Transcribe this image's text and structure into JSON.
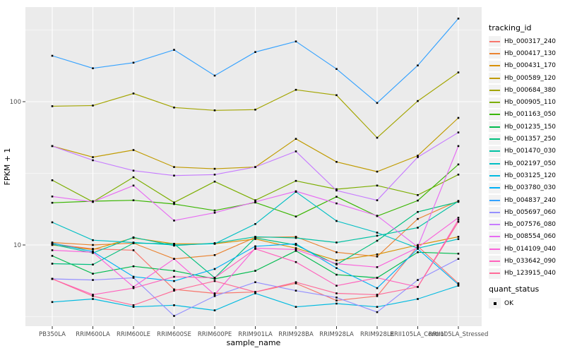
{
  "figure": {
    "y_tick_labels": [
      "100",
      "10"
    ]
  },
  "legend": {
    "tracking_title": "tracking_id",
    "quant_title": "quant_status",
    "quant_value": "OK"
  },
  "chart_data": {
    "type": "line",
    "title": "",
    "xlabel": "sample_name",
    "ylabel": "FPKM + 1",
    "y_scale": "log10",
    "ylim": [
      2.7,
      460
    ],
    "y_major_ticks": [
      10,
      100
    ],
    "y_minor_ticks": [
      3.1623,
      31.623,
      316.23
    ],
    "grid": true,
    "legend_position": "right",
    "point_shape": "black-square",
    "panel_background": "#EBEBEB",
    "grid_color": "#FFFFFF",
    "tick_label_color": "#4D4D4D",
    "categories": [
      "PB350LA",
      "RRIM600LA",
      "RRIM600LE",
      "RRIM600SE",
      "RRIM600PE",
      "RRIM901LA",
      "RRIM928BA",
      "RRIM928LA",
      "RRIM928LE",
      "RRII105LA_Control",
      "RRII105LA_Stressed"
    ],
    "series": [
      {
        "name": "Hb_000317_240",
        "color": "#F8766D",
        "values": [
          10.2,
          9.4,
          9.2,
          4.9,
          4.6,
          4.7,
          5.4,
          4.1,
          4.4,
          9.8,
          5.4
        ]
      },
      {
        "name": "Hb_000417_130",
        "color": "#EA8331",
        "values": [
          10.4,
          10.0,
          10.3,
          8.0,
          8.5,
          11.3,
          11.4,
          8.9,
          8.3,
          15.2,
          20.3
        ]
      },
      {
        "name": "Hb_000431_170",
        "color": "#D89000",
        "values": [
          10.0,
          9.3,
          11.2,
          10.2,
          10.2,
          11.0,
          9.5,
          7.8,
          8.6,
          10.0,
          11.4
        ]
      },
      {
        "name": "Hb_000589_120",
        "color": "#C09B00",
        "values": [
          49,
          41,
          46,
          35,
          34,
          35,
          55,
          38,
          32.5,
          42,
          77
        ]
      },
      {
        "name": "Hb_000684_380",
        "color": "#A3A500",
        "values": [
          93,
          94,
          114,
          91,
          87,
          88,
          121,
          111,
          56,
          101,
          160
        ]
      },
      {
        "name": "Hb_000905_110",
        "color": "#7CAE00",
        "values": [
          28.3,
          20.0,
          29.7,
          19.8,
          27.7,
          20.5,
          28.0,
          24.5,
          26.0,
          22.3,
          31.0
        ]
      },
      {
        "name": "Hb_001163_050",
        "color": "#39B600",
        "values": [
          19.7,
          20.2,
          20.5,
          19.3,
          17.4,
          19.8,
          15.8,
          21.7,
          15.9,
          20.4,
          36.5
        ]
      },
      {
        "name": "Hb_001235_150",
        "color": "#00BB4E",
        "values": [
          8.4,
          6.3,
          7.1,
          6.6,
          5.8,
          6.6,
          9.1,
          6.2,
          5.9,
          8.9,
          8.7
        ]
      },
      {
        "name": "Hb_001357_250",
        "color": "#00BF7D",
        "values": [
          7.4,
          7.3,
          10.3,
          10.2,
          5.9,
          11.2,
          10.0,
          7.3,
          10.7,
          17.0,
          20.0
        ]
      },
      {
        "name": "Hb_001470_030",
        "color": "#00C1A3",
        "values": [
          10.1,
          8.8,
          11.3,
          9.9,
          10.3,
          11.4,
          11.2,
          10.4,
          11.6,
          13.2,
          20.2
        ]
      },
      {
        "name": "Hb_002197_050",
        "color": "#00BFC4",
        "values": [
          14.4,
          10.8,
          10.4,
          10.0,
          10.2,
          14.0,
          23.5,
          14.7,
          12.2,
          9.5,
          11.0
        ]
      },
      {
        "name": "Hb_003125_120",
        "color": "#00BAE0",
        "values": [
          4.0,
          4.2,
          3.7,
          3.8,
          3.5,
          4.6,
          3.7,
          3.9,
          3.7,
          4.2,
          5.2
        ]
      },
      {
        "name": "Hb_003780_030",
        "color": "#00B0F6",
        "values": [
          10.3,
          9.0,
          6.0,
          5.6,
          6.8,
          9.8,
          10.2,
          6.9,
          5.0,
          9.4,
          5.3
        ]
      },
      {
        "name": "Hb_004837_240",
        "color": "#35A2FF",
        "values": [
          209,
          171,
          187,
          230,
          152,
          222,
          263,
          169,
          98,
          179,
          380
        ]
      },
      {
        "name": "Hb_005697_060",
        "color": "#9590FF",
        "values": [
          5.8,
          5.7,
          5.9,
          3.2,
          4.4,
          5.5,
          4.8,
          4.3,
          3.4,
          5.7,
          8.0
        ]
      },
      {
        "name": "Hb_007576_080",
        "color": "#C77CFF",
        "values": [
          49,
          39,
          33,
          30.5,
          31,
          35,
          45,
          24,
          20.5,
          41,
          61
        ]
      },
      {
        "name": "Hb_008554_060",
        "color": "#E76BF3",
        "values": [
          21.8,
          20.0,
          26.0,
          14.8,
          16.8,
          20.0,
          23.7,
          19.5,
          16.0,
          9.7,
          49
        ]
      },
      {
        "name": "Hb_014109_040",
        "color": "#FA62DB",
        "values": [
          9.2,
          8.9,
          5.1,
          8.0,
          4.5,
          9.5,
          9.3,
          7.4,
          7.0,
          9.6,
          15.5
        ]
      },
      {
        "name": "Hb_033642_090",
        "color": "#FF62BC",
        "values": [
          5.8,
          4.5,
          5.0,
          6.0,
          5.9,
          9.4,
          7.6,
          5.2,
          5.9,
          5.1,
          15.0
        ]
      },
      {
        "name": "Hb_123915_040",
        "color": "#FF6A98",
        "values": [
          5.8,
          4.4,
          3.8,
          4.8,
          5.6,
          4.7,
          5.5,
          4.6,
          4.5,
          5.1,
          14.5
        ]
      }
    ],
    "quant_status_values": [
      "OK"
    ]
  }
}
